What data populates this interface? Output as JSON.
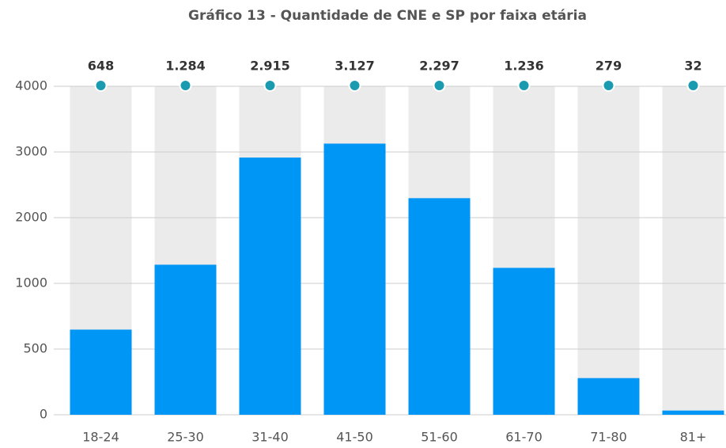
{
  "chart_data": {
    "type": "bar",
    "title": "Gráfico 13 - Quantidade de CNE e SP por faixa etária",
    "categories": [
      "18-24",
      "25-30",
      "31-40",
      "41-50",
      "51-60",
      "61-70",
      "71-80",
      "81+"
    ],
    "values": [
      648,
      1284,
      2915,
      3127,
      2297,
      1236,
      279,
      32
    ],
    "value_labels": [
      "648",
      "1.284",
      "2.915",
      "3.127",
      "2.297",
      "1.236",
      "279",
      "32"
    ],
    "color": "#0096f5",
    "ylim": [
      0,
      4000
    ],
    "yticks": [
      0,
      500,
      1000,
      2000,
      3000,
      4000
    ],
    "grid": true
  }
}
